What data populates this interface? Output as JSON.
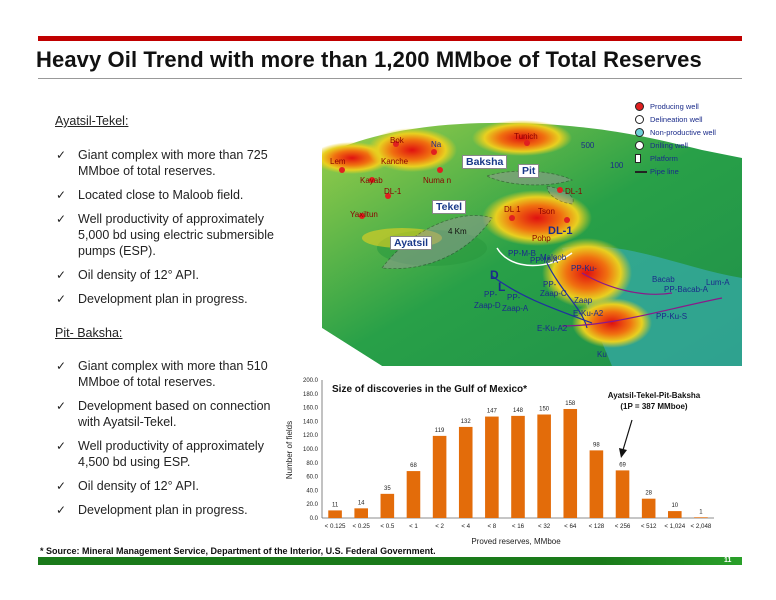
{
  "slide": {
    "title": "Heavy Oil Trend with more than 1,200 MMboe of Total Reserves",
    "page_number": "11",
    "footnote": "* Source: Mineral Management Service, Department of the Interior, U.S. Federal Government."
  },
  "sections": [
    {
      "heading": "Ayatsil-Tekel",
      "bullets": [
        "Giant complex with more than 725 MMboe of total reserves.",
        "Located close to Maloob field.",
        "Well productivity of approximately 5,000 bd using electric submersible pumps (ESP).",
        "Oil density of 12° API.",
        "Development plan in progress."
      ]
    },
    {
      "heading": "Pit- Baksha",
      "bullets": [
        "Giant complex with more than 510 MMboe of total reserves.",
        "Development based on connection with Ayatsil-Tekel.",
        "Well productivity of approximately 4,500 bd using ESP.",
        "Oil density of 12° API.",
        "Development plan in progress."
      ]
    }
  ],
  "map": {
    "legend": [
      {
        "label": "Producing well",
        "color": "#e02020"
      },
      {
        "label": "Delineation well",
        "color": "#ffffff"
      },
      {
        "label": "Non-productive well",
        "color": "#6fd0d8"
      },
      {
        "label": "Drilling well",
        "color": "#ffffff"
      },
      {
        "label": "Platform",
        "color": "#ffffff"
      },
      {
        "label": "Pipe line",
        "color": "#222222"
      }
    ],
    "scale_labels": [
      "500",
      "100"
    ],
    "field_labels": [
      "Bok",
      "Na",
      "Tunich",
      "Lem",
      "Kanche",
      "Numa n",
      "Kayab",
      "DL-1",
      "DL-1",
      "Yaxiltun",
      "DL 1",
      "Tson",
      "Pohp",
      "DL-1",
      "PP-M-B",
      "PP-M-A",
      "Maloob",
      "PP-Ku-",
      "PP-",
      "PP-",
      "PP-",
      "Zaap-C",
      "Zaap-D",
      "Zaap-A",
      "Zaap",
      "E-Ku-A2",
      "E-Ku-A2",
      "Bacab",
      "PP-Bacab-A",
      "Lum-A",
      "PP-Ku-S",
      "Ku",
      "D",
      "L"
    ],
    "boxed_labels": [
      "Baksha",
      "Pit",
      "Tekel",
      "Ayatsil"
    ],
    "annotation": "4 Km"
  },
  "chart_data": {
    "type": "bar",
    "title": "Size of discoveries in the Gulf of Mexico*",
    "xlabel": "Proved reserves, MMboe",
    "ylabel": "Number of fields",
    "ylim": [
      0,
      200
    ],
    "yticks": [
      "0.0",
      "20.0",
      "40.0",
      "60.0",
      "80.0",
      "100.0",
      "120.0",
      "140.0",
      "160.0",
      "180.0",
      "200.0"
    ],
    "categories": [
      "< 0.125",
      "< 0.25",
      "< 0.5",
      "< 1",
      "< 2",
      "< 4",
      "< 8",
      "< 16",
      "< 32",
      "< 64",
      "< 128",
      "< 256",
      "< 512",
      "< 1,024",
      "< 2,048"
    ],
    "values": [
      11,
      14,
      35,
      68,
      119,
      132,
      147,
      148,
      150,
      158,
      98,
      69,
      28,
      10,
      1
    ],
    "bar_color": "#e36c0a",
    "annotation": "Ayatsil-Tekel-Pit-Baksha (1P = 387 MMboe)",
    "annotation_line1": "Ayatsil-Tekel-Pit-Baksha",
    "annotation_line2": "(1P = 387 MMboe)"
  }
}
